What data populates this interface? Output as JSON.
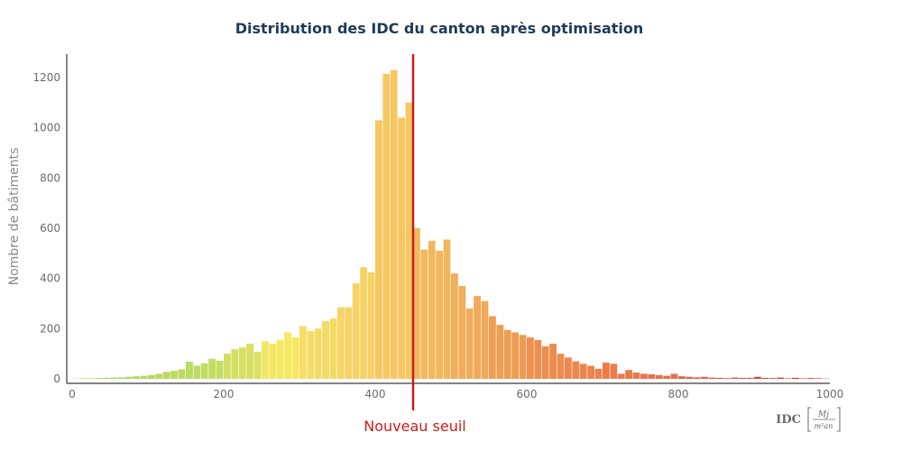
{
  "chart_data": {
    "type": "bar",
    "title": "Distribution des IDC du canton après optimisation",
    "ylabel": "Nombre de bâtiments",
    "xlabel": {
      "name": "IDC",
      "unit_num": "Mj",
      "unit_den": "m²an"
    },
    "xlim": [
      0,
      1000
    ],
    "ylim": [
      0,
      1290
    ],
    "xticks": [
      0,
      200,
      400,
      600,
      800,
      1000
    ],
    "yticks": [
      0,
      200,
      400,
      600,
      800,
      1000,
      1200
    ],
    "bin_width": 10,
    "bins_start": [
      0,
      10,
      20,
      30,
      40,
      50,
      60,
      70,
      80,
      90,
      100,
      110,
      120,
      130,
      140,
      150,
      160,
      170,
      180,
      190,
      200,
      210,
      220,
      230,
      240,
      250,
      260,
      270,
      280,
      290,
      300,
      310,
      320,
      330,
      340,
      350,
      360,
      370,
      380,
      390,
      400,
      410,
      420,
      430,
      440,
      450,
      460,
      470,
      480,
      490,
      500,
      510,
      520,
      530,
      540,
      550,
      560,
      570,
      580,
      590,
      600,
      610,
      620,
      630,
      640,
      650,
      660,
      670,
      680,
      690,
      700,
      710,
      720,
      730,
      740,
      750,
      760,
      770,
      780,
      790,
      800,
      810,
      820,
      830,
      840,
      850,
      860,
      870,
      880,
      890,
      900,
      910,
      920,
      930,
      940,
      950,
      960,
      970,
      980,
      990
    ],
    "counts": [
      1,
      2,
      2,
      3,
      4,
      5,
      6,
      8,
      10,
      12,
      15,
      20,
      28,
      32,
      38,
      68,
      52,
      62,
      80,
      72,
      100,
      118,
      125,
      140,
      108,
      150,
      140,
      155,
      185,
      165,
      210,
      190,
      200,
      230,
      240,
      285,
      285,
      380,
      445,
      425,
      1030,
      1215,
      1230,
      1040,
      1100,
      600,
      515,
      550,
      510,
      555,
      420,
      370,
      280,
      330,
      310,
      250,
      215,
      195,
      185,
      175,
      165,
      155,
      130,
      140,
      100,
      85,
      70,
      60,
      52,
      40,
      65,
      60,
      20,
      35,
      25,
      20,
      18,
      15,
      12,
      20,
      10,
      8,
      6,
      8,
      5,
      4,
      3,
      5,
      4,
      4,
      8,
      4,
      3,
      5,
      2,
      4,
      2,
      3,
      2,
      1
    ],
    "colors": [
      "#8fcb4a",
      "#96cd4e",
      "#9ccf52",
      "#a2d154",
      "#a6d358",
      "#aad55b",
      "#addb56",
      "#b0d858",
      "#b3d95b",
      "#b5da5d",
      "#b6db5f",
      "#b8db5f",
      "#b9db61",
      "#badc62",
      "#bbdc62",
      "#bcdc62",
      "#bedc63",
      "#c0dc63",
      "#c2dc63",
      "#c4dc63",
      "#d2df64",
      "#d4df62",
      "#d6e062",
      "#d8e062",
      "#dae062",
      "#f2e764",
      "#f4e762",
      "#f5e860",
      "#f6e860",
      "#f7e860",
      "#f6de67",
      "#f5dd67",
      "#f5dc67",
      "#f4db67",
      "#f4da66",
      "#f6d466",
      "#f6d366",
      "#f6d366",
      "#f6d266",
      "#f6d166",
      "#f6c862",
      "#f6c862",
      "#f6c761",
      "#f6c761",
      "#f6c660",
      "#f2ba5e",
      "#f2b95e",
      "#f2b85d",
      "#f2b75d",
      "#f2b65c",
      "#f1ae5b",
      "#f1ad5b",
      "#f1ac5a",
      "#f0ab5a",
      "#f0aa59",
      "#ef9f55",
      "#ef9e55",
      "#ee9d54",
      "#ee9c54",
      "#ee9b53",
      "#ee9050",
      "#ed8f50",
      "#ed8e4f",
      "#ec8d4f",
      "#ec8c4e",
      "#ed874e",
      "#ec864e",
      "#ec854d",
      "#eb844d",
      "#eb834c",
      "#ec7d4c",
      "#eb7c4c",
      "#eb7b4b",
      "#ea7a4b",
      "#ea794a",
      "#ea7248",
      "#e97148",
      "#e97047",
      "#e86f47",
      "#e86e46",
      "#e4614a",
      "#e3604a",
      "#e25f49",
      "#e15e49",
      "#e05d48",
      "#de5246",
      "#dd5146",
      "#dc5045",
      "#db4f45",
      "#da4e44",
      "#d8413f",
      "#d7403f",
      "#d63f3e",
      "#d53e3e",
      "#d43d3d",
      "#d0323a",
      "#cf313a",
      "#ce3039",
      "#cd2f39",
      "#cc2e38"
    ],
    "threshold": {
      "x": 450,
      "label": "Nouveau seuil",
      "color": "#c91c1c"
    }
  }
}
